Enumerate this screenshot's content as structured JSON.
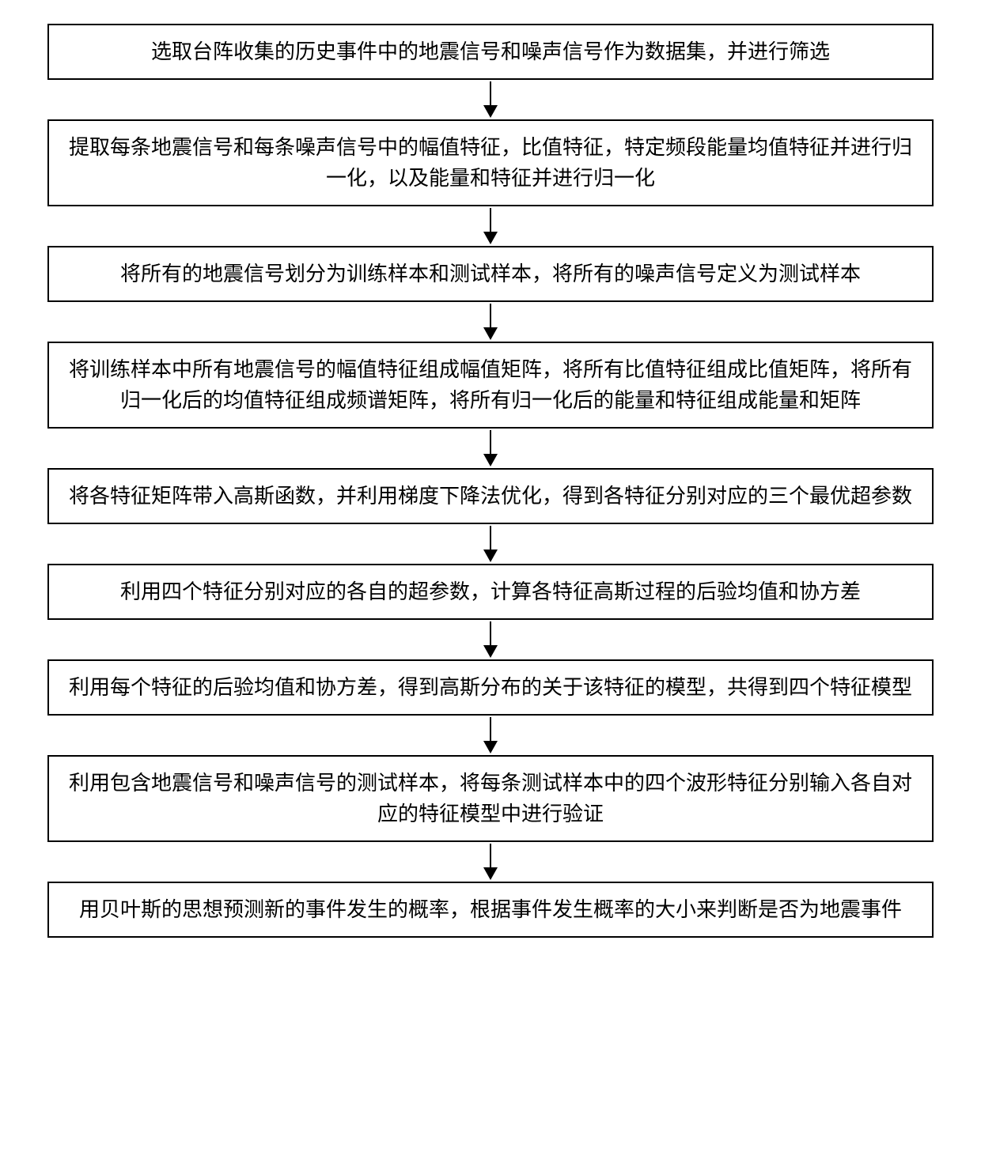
{
  "flowchart": {
    "type": "flowchart",
    "direction": "vertical",
    "box_border_color": "#000000",
    "box_border_width": 2,
    "box_background": "#ffffff",
    "text_color": "#000000",
    "font_size_pt": 20,
    "font_family": "SimSun",
    "arrow_color": "#000000",
    "arrow_line_width": 2,
    "arrow_head_width": 18,
    "arrow_head_height": 16,
    "gap_between_boxes": 50,
    "box_width_ratio": 1.0,
    "steps": [
      {
        "id": "step1",
        "text": "选取台阵收集的历史事件中的地震信号和噪声信号作为数据集，并进行筛选"
      },
      {
        "id": "step2",
        "text": "提取每条地震信号和每条噪声信号中的幅值特征，比值特征，特定频段能量均值特征并进行归一化，以及能量和特征并进行归一化"
      },
      {
        "id": "step3",
        "text": "将所有的地震信号划分为训练样本和测试样本，将所有的噪声信号定义为测试样本"
      },
      {
        "id": "step4",
        "text": "将训练样本中所有地震信号的幅值特征组成幅值矩阵，将所有比值特征组成比值矩阵，将所有归一化后的均值特征组成频谱矩阵，将所有归一化后的能量和特征组成能量和矩阵"
      },
      {
        "id": "step5",
        "text": "将各特征矩阵带入高斯函数，并利用梯度下降法优化，得到各特征分别对应的三个最优超参数"
      },
      {
        "id": "step6",
        "text": "利用四个特征分别对应的各自的超参数，计算各特征高斯过程的后验均值和协方差"
      },
      {
        "id": "step7",
        "text": "利用每个特征的后验均值和协方差，得到高斯分布的关于该特征的模型，共得到四个特征模型"
      },
      {
        "id": "step8",
        "text": "利用包含地震信号和噪声信号的测试样本，将每条测试样本中的四个波形特征分别输入各自对应的特征模型中进行验证"
      },
      {
        "id": "step9",
        "text": "用贝叶斯的思想预测新的事件发生的概率，根据事件发生概率的大小来判断是否为地震事件"
      }
    ]
  }
}
